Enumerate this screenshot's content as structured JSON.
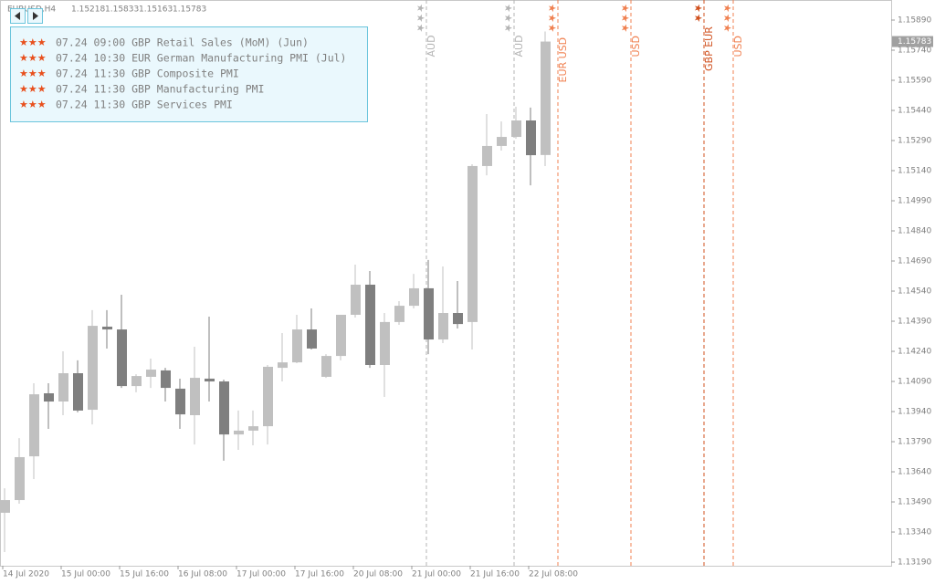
{
  "chart_data": {
    "type": "candlestick",
    "title": "EURUSD,H4",
    "categories": [
      "14 Jul 2020",
      null,
      null,
      null,
      "15 Jul 00:00",
      null,
      null,
      null,
      "15 Jul 16:00",
      null,
      null,
      null,
      "16 Jul 08:00",
      null,
      null,
      null,
      "17 Jul 00:00",
      null,
      null,
      null,
      "17 Jul 16:00",
      null,
      null,
      null,
      "20 Jul 08:00",
      null,
      null,
      null,
      "21 Jul 00:00",
      null,
      null,
      null,
      "21 Jul 16:00",
      null,
      null,
      null,
      "22 Jul 08:00",
      null
    ],
    "open": [
      1.13436,
      1.13499,
      1.13717,
      1.14031,
      1.1399,
      1.14131,
      1.13949,
      1.14363,
      1.14349,
      1.14067,
      1.14113,
      1.14145,
      1.14054,
      1.13922,
      1.14104,
      1.1409,
      1.13826,
      1.13845,
      1.13867,
      1.14158,
      1.14185,
      1.14349,
      1.14113,
      1.14217,
      1.14422,
      1.14572,
      1.14172,
      1.14386,
      1.14467,
      1.14554,
      1.14299,
      1.14431,
      1.14386,
      1.15163,
      1.15263,
      1.15308,
      1.1539,
      1.15218
    ],
    "high": [
      1.13558,
      1.13808,
      1.14081,
      1.14081,
      1.1424,
      1.14195,
      1.14445,
      1.14445,
      1.14522,
      1.14126,
      1.14204,
      1.14158,
      1.14104,
      1.14263,
      1.14413,
      1.14099,
      1.13945,
      1.13945,
      1.14172,
      1.14331,
      1.14422,
      1.14454,
      1.14226,
      1.14422,
      1.14672,
      1.1464,
      1.14431,
      1.1449,
      1.14626,
      1.14695,
      1.14663,
      1.1459,
      1.15172,
      1.15422,
      1.15385,
      1.15458,
      1.15454,
      1.15833
    ],
    "low": [
      1.1324,
      1.13481,
      1.13604,
      1.13854,
      1.13922,
      1.13936,
      1.13876,
      1.14254,
      1.14058,
      1.14036,
      1.14058,
      1.1399,
      1.13854,
      1.13776,
      1.1399,
      1.13695,
      1.13749,
      1.13772,
      1.13776,
      1.1409,
      1.14181,
      1.14249,
      1.14108,
      1.14195,
      1.14408,
      1.14158,
      1.14013,
      1.14372,
      1.14454,
      1.14226,
      1.14281,
      1.14354,
      1.14249,
      1.15117,
      1.1524,
      1.15299,
      1.15067,
      1.15163
    ],
    "close": [
      1.13499,
      1.13713,
      1.14026,
      1.1399,
      1.14131,
      1.13945,
      1.14367,
      1.14349,
      1.14067,
      1.14117,
      1.14149,
      1.14058,
      1.13926,
      1.14108,
      1.1409,
      1.13826,
      1.13845,
      1.13867,
      1.14163,
      1.14185,
      1.14349,
      1.14254,
      1.14217,
      1.14422,
      1.14572,
      1.14172,
      1.14386,
      1.14467,
      1.14554,
      1.14299,
      1.14431,
      1.14376,
      1.15163,
      1.15263,
      1.15308,
      1.1539,
      1.15217,
      1.15783
    ],
    "up_color": "#c0c0c0",
    "down_color": "#7f7f7f",
    "ylim": [
      1.13172,
      1.1599
    ],
    "yticks": [
      {
        "value": 1.1589,
        "label": "1.15890"
      },
      {
        "value": 1.1574,
        "label": "1.15740"
      },
      {
        "value": 1.1559,
        "label": "1.15590"
      },
      {
        "value": 1.1544,
        "label": "1.15440"
      },
      {
        "value": 1.1529,
        "label": "1.15290"
      },
      {
        "value": 1.1514,
        "label": "1.15140"
      },
      {
        "value": 1.1499,
        "label": "1.14990"
      },
      {
        "value": 1.1484,
        "label": "1.14840"
      },
      {
        "value": 1.1469,
        "label": "1.14690"
      },
      {
        "value": 1.1454,
        "label": "1.14540"
      },
      {
        "value": 1.1439,
        "label": "1.14390"
      },
      {
        "value": 1.1424,
        "label": "1.14240"
      },
      {
        "value": 1.1409,
        "label": "1.14090"
      },
      {
        "value": 1.1394,
        "label": "1.13940"
      },
      {
        "value": 1.1379,
        "label": "1.13790"
      },
      {
        "value": 1.1364,
        "label": "1.13640"
      },
      {
        "value": 1.1349,
        "label": "1.13490"
      },
      {
        "value": 1.1334,
        "label": "1.13340"
      },
      {
        "value": 1.1319,
        "label": "1.13190"
      }
    ],
    "grid": false,
    "events": [
      {
        "stars": "★★★",
        "label": "AUD",
        "color": "#b4b4b4"
      },
      {
        "stars": "★★★",
        "label": "AUD",
        "color": "#b4b4b4"
      },
      {
        "stars": "★★★",
        "label": "EUR USD",
        "color": "#f08050"
      },
      {
        "stars": "★★★",
        "label": "USD",
        "color": "#f08050"
      },
      {
        "stars": "★★",
        "label": "GBP EUR",
        "color": "#d0501e"
      },
      {
        "stars": "★★★",
        "label": "USD",
        "color": "#f08050"
      }
    ],
    "news": [
      {
        "stars": "★★★",
        "text": "07.24 09:00 GBP Retail Sales (MoM) (Jun)"
      },
      {
        "stars": "★★★",
        "text": "07.24 10:30 EUR German Manufacturing PMI (Jul)"
      },
      {
        "stars": "★★★",
        "text": "07.24 11:30 GBP Composite PMI"
      },
      {
        "stars": "★★★",
        "text": "07.24 11:30 GBP Manufacturing PMI"
      },
      {
        "stars": "★★★",
        "text": "07.24 11:30 GBP Services PMI"
      }
    ]
  }
}
